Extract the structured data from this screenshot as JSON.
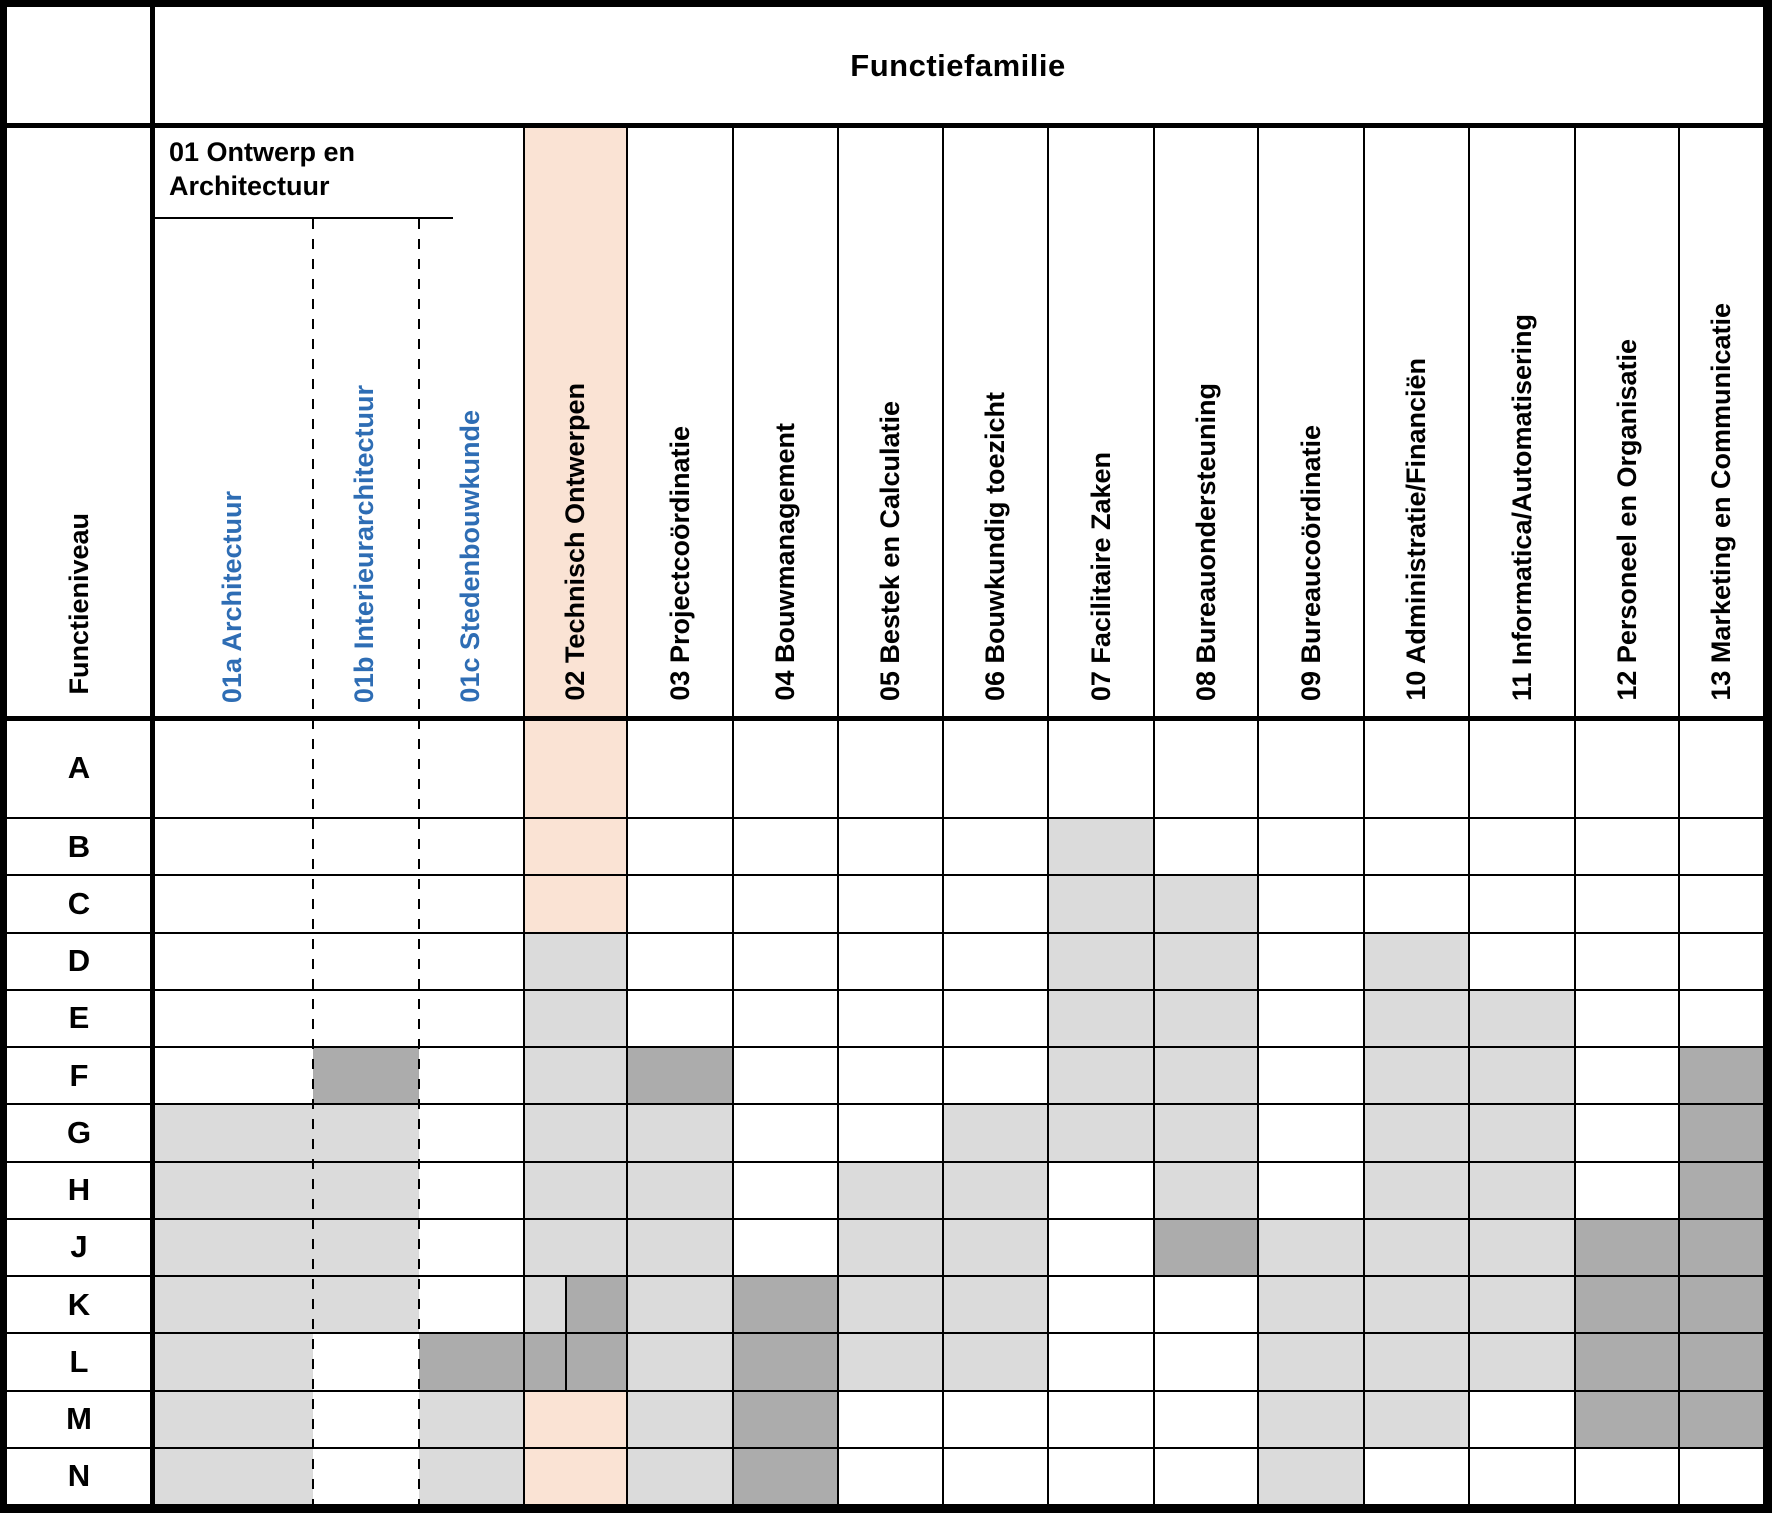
{
  "header": {
    "title": "Functiefamilie",
    "row_axis_label": "Functieniveau",
    "group_01": {
      "title": "01 Ontwerp en Architectuur",
      "sub_columns": [
        "01a Architectuur",
        "01b Interieurarchitectuur",
        "01c Stedenbouwkunde"
      ]
    },
    "columns": [
      "02 Technisch Ontwerpen",
      "03 Projectcoördinatie",
      "04 Bouwmanagement",
      "05 Bestek en Calculatie",
      "06 Bouwkundig toezicht",
      "07 Facilitaire Zaken",
      "08 Bureauondersteuning",
      "09 Bureaucoördinatie",
      "10 Administratie/Financiën",
      "11 Informatica/Automatisering",
      "12 Personeel en Organisatie",
      "13 Marketing en Communicatie"
    ]
  },
  "colors": {
    "highlight_column_peach": "#FAE3D4",
    "shaded_light_gray": "#DBDBDB",
    "shaded_dark_gray": "#ACACAC",
    "sub_column_label_blue": "#2E6DB4",
    "grid_line_black": "#000000",
    "fills": {
      "w": "#FFFFFF",
      "l": "#DBDBDB",
      "d": "#ACACAC",
      "p": "#FAE3D4"
    }
  },
  "matrix": {
    "column_keys": [
      "01a",
      "01b",
      "01c",
      "02",
      "03",
      "04",
      "05",
      "06",
      "07",
      "08",
      "09",
      "10",
      "11",
      "12",
      "13"
    ],
    "fill_legend": {
      "w": "white",
      "l": "light-gray",
      "d": "dark-gray",
      "p": "peach",
      "ld": "split light|dark",
      "dd": "split dark|dark"
    },
    "rows": [
      {
        "level": "A",
        "cells": [
          "w",
          "w",
          "w",
          "p",
          "w",
          "w",
          "w",
          "w",
          "w",
          "w",
          "w",
          "w",
          "w",
          "w",
          "w"
        ]
      },
      {
        "level": "B",
        "cells": [
          "w",
          "w",
          "w",
          "p",
          "w",
          "w",
          "w",
          "w",
          "l",
          "w",
          "w",
          "w",
          "w",
          "w",
          "w"
        ]
      },
      {
        "level": "C",
        "cells": [
          "w",
          "w",
          "w",
          "p",
          "w",
          "w",
          "w",
          "w",
          "l",
          "l",
          "w",
          "w",
          "w",
          "w",
          "w"
        ]
      },
      {
        "level": "D",
        "cells": [
          "w",
          "w",
          "w",
          "l",
          "w",
          "w",
          "w",
          "w",
          "l",
          "l",
          "w",
          "l",
          "w",
          "w",
          "w"
        ]
      },
      {
        "level": "E",
        "cells": [
          "w",
          "w",
          "w",
          "l",
          "w",
          "w",
          "w",
          "w",
          "l",
          "l",
          "w",
          "l",
          "l",
          "w",
          "w"
        ]
      },
      {
        "level": "F",
        "cells": [
          "w",
          "d",
          "w",
          "l",
          "d",
          "w",
          "w",
          "w",
          "l",
          "l",
          "w",
          "l",
          "l",
          "w",
          "d"
        ]
      },
      {
        "level": "G",
        "cells": [
          "l",
          "l",
          "w",
          "l",
          "l",
          "w",
          "w",
          "l",
          "l",
          "l",
          "w",
          "l",
          "l",
          "w",
          "d"
        ]
      },
      {
        "level": "H",
        "cells": [
          "l",
          "l",
          "w",
          "l",
          "l",
          "w",
          "l",
          "l",
          "w",
          "l",
          "w",
          "l",
          "l",
          "w",
          "d"
        ]
      },
      {
        "level": "J",
        "cells": [
          "l",
          "l",
          "w",
          "l",
          "l",
          "w",
          "l",
          "l",
          "w",
          "d",
          "l",
          "l",
          "l",
          "d",
          "d"
        ]
      },
      {
        "level": "K",
        "cells": [
          "l",
          "l",
          "w",
          "ld",
          "l",
          "d",
          "l",
          "l",
          "w",
          "w",
          "l",
          "l",
          "l",
          "d",
          "d"
        ]
      },
      {
        "level": "L",
        "cells": [
          "l",
          "w",
          "d",
          "dd",
          "l",
          "d",
          "l",
          "l",
          "w",
          "w",
          "l",
          "l",
          "l",
          "d",
          "d"
        ]
      },
      {
        "level": "M",
        "cells": [
          "l",
          "w",
          "l",
          "p",
          "l",
          "d",
          "w",
          "w",
          "w",
          "w",
          "l",
          "l",
          "w",
          "d",
          "d"
        ]
      },
      {
        "level": "N",
        "cells": [
          "l",
          "w",
          "l",
          "p",
          "l",
          "d",
          "w",
          "w",
          "w",
          "w",
          "l",
          "w",
          "w",
          "w",
          "w"
        ]
      }
    ]
  }
}
